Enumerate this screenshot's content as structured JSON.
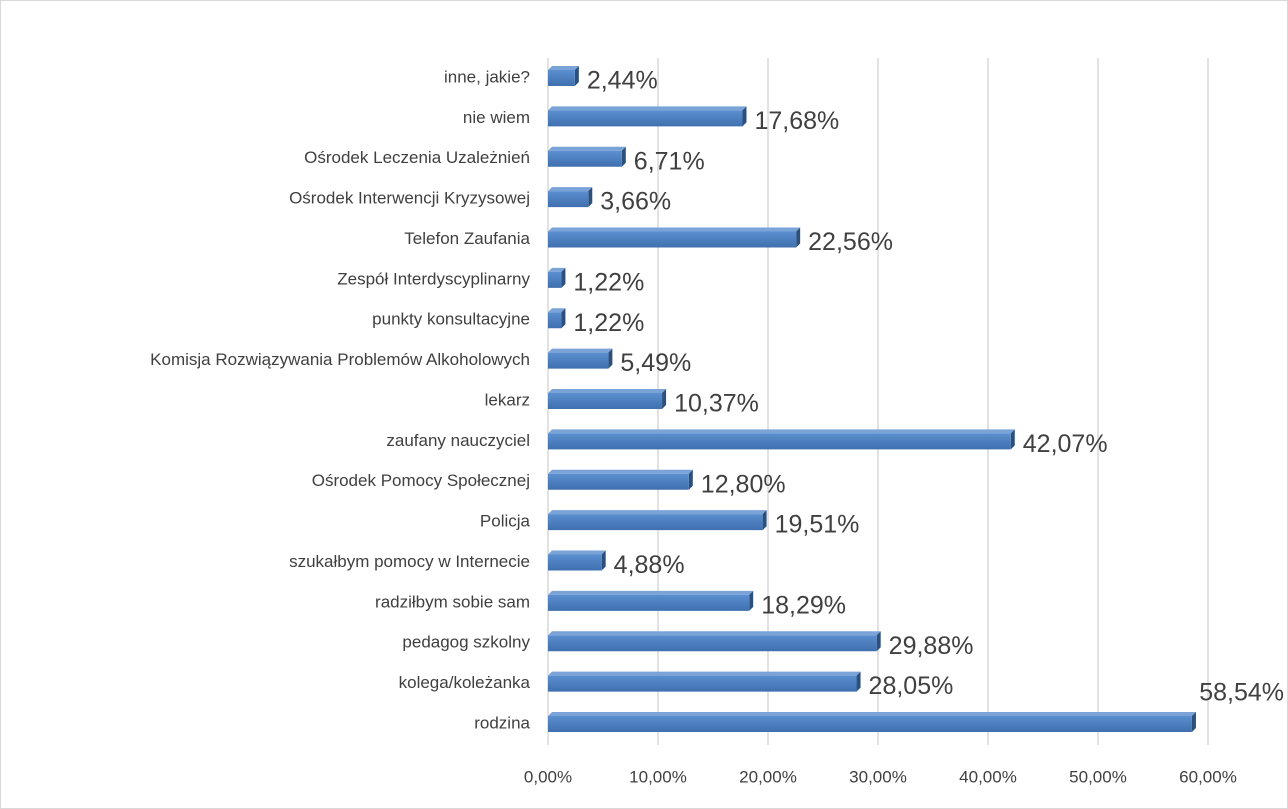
{
  "chart_data": {
    "type": "bar",
    "orientation": "horizontal",
    "categories": [
      "inne, jakie?",
      "nie wiem",
      "Ośrodek Leczenia Uzależnień",
      "Ośrodek Interwencji Kryzysowej",
      "Telefon Zaufania",
      "Zespół Interdyscyplinarny",
      "punkty konsultacyjne",
      "Komisja Rozwiązywania Problemów Alkoholowych",
      "lekarz",
      "zaufany nauczyciel",
      "Ośrodek Pomocy Społecznej",
      "Policja",
      "szukałbym pomocy w Internecie",
      "radziłbym sobie sam",
      "pedagog szkolny",
      "kolega/koleżanka",
      "rodzina"
    ],
    "values": [
      2.44,
      17.68,
      6.71,
      3.66,
      22.56,
      1.22,
      1.22,
      5.49,
      10.37,
      42.07,
      12.8,
      19.51,
      4.88,
      18.29,
      29.88,
      28.05,
      58.54
    ],
    "value_labels": [
      "2,44%",
      "17,68%",
      "6,71%",
      "3,66%",
      "22,56%",
      "1,22%",
      "1,22%",
      "5,49%",
      "10,37%",
      "42,07%",
      "12,80%",
      "19,51%",
      "4,88%",
      "18,29%",
      "29,88%",
      "28,05%",
      "58,54%"
    ],
    "color": "#4f81bd",
    "xlim": [
      0,
      60
    ],
    "xticks": [
      {
        "value": 0,
        "label": "0,00%"
      },
      {
        "value": 10,
        "label": "10,00%"
      },
      {
        "value": 20,
        "label": "20,00%"
      },
      {
        "value": 30,
        "label": "30,00%"
      },
      {
        "value": 40,
        "label": "40,00%"
      },
      {
        "value": 50,
        "label": "50,00%"
      },
      {
        "value": 60,
        "label": "60,00%"
      }
    ],
    "grid": true
  }
}
